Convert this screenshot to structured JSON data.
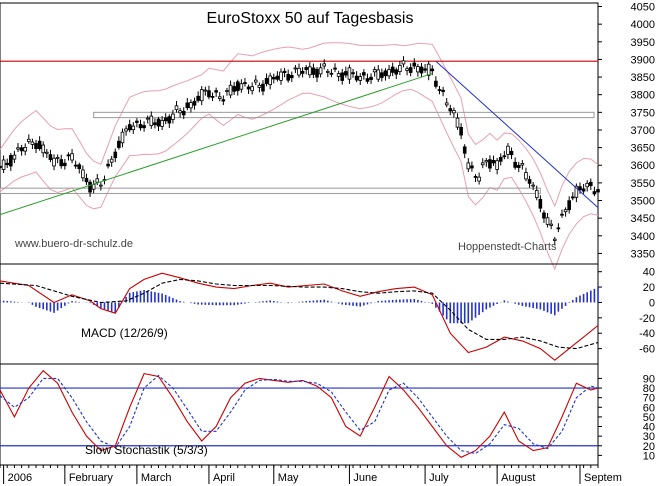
{
  "chart_data": [
    {
      "panel": "price",
      "type": "candlestick",
      "title": "EuroStoxx 50 auf Tagesbasis",
      "watermark_left": "www.buero-dr-schulz.de",
      "watermark_right": "Hoppenstedt-Charts",
      "ylim": [
        3320,
        4060
      ],
      "yticks": [
        3350,
        3400,
        3450,
        3500,
        3550,
        3600,
        3650,
        3700,
        3750,
        3800,
        3850,
        3900,
        3950,
        4000,
        4050
      ],
      "xlim": [
        0,
        166
      ],
      "close": [
        [
          0,
          3585
        ],
        [
          5,
          3640
        ],
        [
          10,
          3668
        ],
        [
          15,
          3610
        ],
        [
          20,
          3620
        ],
        [
          25,
          3545
        ],
        [
          28,
          3542
        ],
        [
          32,
          3640
        ],
        [
          36,
          3710
        ],
        [
          40,
          3720
        ],
        [
          45,
          3722
        ],
        [
          52,
          3765
        ],
        [
          58,
          3810
        ],
        [
          62,
          3790
        ],
        [
          66,
          3830
        ],
        [
          70,
          3820
        ],
        [
          75,
          3840
        ],
        [
          80,
          3860
        ],
        [
          85,
          3868
        ],
        [
          90,
          3870
        ],
        [
          95,
          3860
        ],
        [
          100,
          3850
        ],
        [
          105,
          3855
        ],
        [
          110,
          3872
        ],
        [
          115,
          3880
        ],
        [
          120,
          3862
        ],
        [
          125,
          3760
        ],
        [
          128,
          3700
        ],
        [
          130,
          3600
        ],
        [
          133,
          3560
        ],
        [
          135,
          3620
        ],
        [
          138,
          3600
        ],
        [
          141,
          3640
        ],
        [
          145,
          3590
        ],
        [
          149,
          3520
        ],
        [
          152,
          3440
        ],
        [
          154,
          3395
        ],
        [
          157,
          3480
        ],
        [
          160,
          3520
        ],
        [
          163,
          3545
        ],
        [
          166,
          3530
        ]
      ],
      "support_lines": [
        {
          "name": "resistance",
          "color": "#cc0000",
          "value": 3895
        },
        {
          "name": "upper-zone",
          "color": "#999999",
          "from": 3735,
          "to": 3750
        },
        {
          "name": "lower-zone",
          "color": "#999999",
          "from": 3520,
          "to": 3535
        }
      ],
      "trendlines": [
        {
          "color": "#2a9d2a",
          "from": [
            0,
            3460
          ],
          "to": [
            120,
            3860
          ]
        },
        {
          "color": "#2233cc",
          "from": [
            121,
            3895
          ],
          "to": [
            166,
            3480
          ]
        }
      ],
      "band_color": "#e8a0b0",
      "candle_color": "#000000"
    },
    {
      "panel": "macd",
      "type": "line",
      "label": "MACD (12/26/9)",
      "ylim": [
        -80,
        50
      ],
      "yticks": [
        -60,
        -40,
        -20,
        0,
        20,
        40
      ],
      "series": [
        {
          "color": "#cc0000",
          "values": [
            [
              0,
              28
            ],
            [
              8,
              22
            ],
            [
              15,
              0
            ],
            [
              20,
              10
            ],
            [
              25,
              2
            ],
            [
              28,
              -8
            ],
            [
              32,
              -14
            ],
            [
              36,
              18
            ],
            [
              40,
              30
            ],
            [
              45,
              38
            ],
            [
              50,
              32
            ],
            [
              55,
              25
            ],
            [
              60,
              20
            ],
            [
              65,
              18
            ],
            [
              70,
              22
            ],
            [
              75,
              25
            ],
            [
              80,
              20
            ],
            [
              85,
              22
            ],
            [
              90,
              24
            ],
            [
              95,
              15
            ],
            [
              100,
              8
            ],
            [
              105,
              14
            ],
            [
              110,
              18
            ],
            [
              115,
              20
            ],
            [
              120,
              10
            ],
            [
              125,
              -40
            ],
            [
              130,
              -65
            ],
            [
              135,
              -58
            ],
            [
              140,
              -45
            ],
            [
              145,
              -50
            ],
            [
              150,
              -60
            ],
            [
              154,
              -75
            ],
            [
              158,
              -60
            ],
            [
              162,
              -45
            ],
            [
              166,
              -30
            ]
          ]
        },
        {
          "color": "#000000",
          "dashed": true,
          "values": [
            [
              0,
              25
            ],
            [
              10,
              22
            ],
            [
              20,
              8
            ],
            [
              28,
              0
            ],
            [
              35,
              2
            ],
            [
              40,
              12
            ],
            [
              45,
              25
            ],
            [
              50,
              30
            ],
            [
              55,
              28
            ],
            [
              60,
              24
            ],
            [
              65,
              22
            ],
            [
              70,
              22
            ],
            [
              75,
              22
            ],
            [
              80,
              21
            ],
            [
              85,
              20
            ],
            [
              90,
              20
            ],
            [
              95,
              18
            ],
            [
              100,
              14
            ],
            [
              105,
              12
            ],
            [
              110,
              14
            ],
            [
              115,
              15
            ],
            [
              120,
              12
            ],
            [
              125,
              -10
            ],
            [
              130,
              -35
            ],
            [
              135,
              -48
            ],
            [
              140,
              -48
            ],
            [
              145,
              -45
            ],
            [
              150,
              -50
            ],
            [
              155,
              -58
            ],
            [
              160,
              -60
            ],
            [
              166,
              -52
            ]
          ]
        }
      ],
      "histogram_color": "#2233cc"
    },
    {
      "panel": "stochastic",
      "type": "line",
      "label": "Slow Stochastik (5/3/3)",
      "ylim": [
        0,
        105
      ],
      "yticks": [
        10,
        20,
        30,
        40,
        50,
        60,
        70,
        80,
        90
      ],
      "levels": [
        80,
        20
      ],
      "series": [
        {
          "color": "#cc0000",
          "values": [
            [
              0,
              78
            ],
            [
              4,
              50
            ],
            [
              8,
              80
            ],
            [
              12,
              98
            ],
            [
              16,
              85
            ],
            [
              20,
              55
            ],
            [
              24,
              30
            ],
            [
              28,
              15
            ],
            [
              32,
              20
            ],
            [
              36,
              60
            ],
            [
              40,
              95
            ],
            [
              44,
              92
            ],
            [
              48,
              70
            ],
            [
              52,
              45
            ],
            [
              56,
              25
            ],
            [
              60,
              40
            ],
            [
              64,
              70
            ],
            [
              68,
              85
            ],
            [
              72,
              90
            ],
            [
              76,
              88
            ],
            [
              80,
              86
            ],
            [
              84,
              88
            ],
            [
              88,
              82
            ],
            [
              92,
              70
            ],
            [
              96,
              40
            ],
            [
              100,
              30
            ],
            [
              104,
              60
            ],
            [
              108,
              92
            ],
            [
              112,
              78
            ],
            [
              116,
              60
            ],
            [
              120,
              40
            ],
            [
              124,
              20
            ],
            [
              128,
              8
            ],
            [
              132,
              15
            ],
            [
              136,
              30
            ],
            [
              140,
              55
            ],
            [
              144,
              25
            ],
            [
              148,
              15
            ],
            [
              152,
              18
            ],
            [
              156,
              50
            ],
            [
              160,
              85
            ],
            [
              164,
              78
            ],
            [
              166,
              80
            ]
          ]
        },
        {
          "color": "#2233cc",
          "dashed": true,
          "values": [
            [
              0,
              72
            ],
            [
              4,
              60
            ],
            [
              8,
              70
            ],
            [
              12,
              90
            ],
            [
              16,
              90
            ],
            [
              20,
              70
            ],
            [
              24,
              45
            ],
            [
              28,
              25
            ],
            [
              32,
              18
            ],
            [
              36,
              40
            ],
            [
              40,
              80
            ],
            [
              44,
              93
            ],
            [
              48,
              80
            ],
            [
              52,
              58
            ],
            [
              56,
              35
            ],
            [
              60,
              35
            ],
            [
              64,
              55
            ],
            [
              68,
              78
            ],
            [
              72,
              88
            ],
            [
              76,
              89
            ],
            [
              80,
              87
            ],
            [
              84,
              87
            ],
            [
              88,
              85
            ],
            [
              92,
              76
            ],
            [
              96,
              55
            ],
            [
              100,
              36
            ],
            [
              104,
              45
            ],
            [
              108,
              78
            ],
            [
              112,
              85
            ],
            [
              116,
              70
            ],
            [
              120,
              50
            ],
            [
              124,
              30
            ],
            [
              128,
              15
            ],
            [
              132,
              12
            ],
            [
              136,
              22
            ],
            [
              140,
              42
            ],
            [
              144,
              38
            ],
            [
              148,
              22
            ],
            [
              152,
              17
            ],
            [
              156,
              35
            ],
            [
              160,
              70
            ],
            [
              164,
              82
            ],
            [
              166,
              80
            ]
          ]
        }
      ],
      "level_color": "#2233cc"
    }
  ],
  "x_axis": {
    "months": [
      {
        "label": "2006",
        "at": 1
      },
      {
        "label": "February",
        "at": 18
      },
      {
        "label": "March",
        "at": 38
      },
      {
        "label": "April",
        "at": 58
      },
      {
        "label": "May",
        "at": 76
      },
      {
        "label": "June",
        "at": 97
      },
      {
        "label": "July",
        "at": 118
      },
      {
        "label": "August",
        "at": 138
      },
      {
        "label": "Septem",
        "at": 161
      }
    ]
  }
}
